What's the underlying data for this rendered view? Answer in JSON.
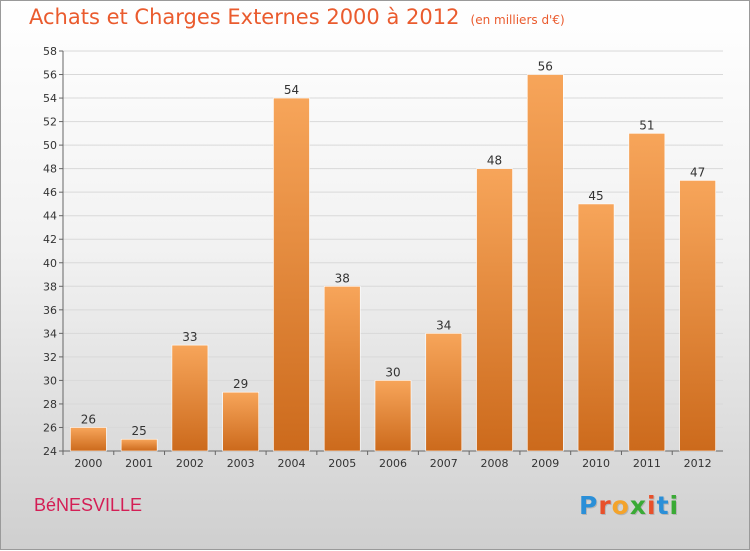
{
  "title": "Achats et Charges Externes 2000 à 2012",
  "unit_note": "(en milliers d'€)",
  "commune": "BéNESVILLE",
  "brand": {
    "letters": [
      "P",
      "r",
      "o",
      "x",
      "i",
      "t",
      "i"
    ],
    "colors": [
      "#2a8fd8",
      "#e8502a",
      "#f4a32a",
      "#3aaa35",
      "#e8502a",
      "#2a8fd8",
      "#3aaa35"
    ]
  },
  "colors": {
    "title": "#ea5b2e",
    "commune": "#d41e55",
    "bar_top": "#f7a55a",
    "bar_bottom": "#cc6a1c"
  },
  "chart_data": {
    "type": "bar",
    "categories": [
      "2000",
      "2001",
      "2002",
      "2003",
      "2004",
      "2005",
      "2006",
      "2007",
      "2008",
      "2009",
      "2010",
      "2011",
      "2012"
    ],
    "values": [
      26,
      25,
      33,
      29,
      54,
      38,
      30,
      34,
      48,
      56,
      45,
      51,
      47
    ],
    "ylim": [
      24,
      58
    ],
    "yticks": [
      24,
      26,
      28,
      30,
      32,
      34,
      36,
      38,
      40,
      42,
      44,
      46,
      48,
      50,
      52,
      54,
      56,
      58
    ],
    "grid": true,
    "data_labels": true
  }
}
